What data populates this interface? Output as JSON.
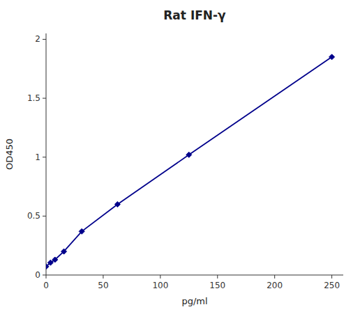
{
  "chart_data": {
    "type": "line",
    "title": "Rat IFN-γ",
    "xlabel": "pg/ml",
    "ylabel": "OD450",
    "x": [
      0,
      3.9,
      7.8,
      15.6,
      31.25,
      62.5,
      125,
      250
    ],
    "values": [
      0.072,
      0.105,
      0.13,
      0.2,
      0.37,
      0.6,
      1.02,
      1.85
    ],
    "color": "#00008B",
    "marker": "diamond",
    "xlim": [
      0,
      260
    ],
    "ylim": [
      0,
      2.05
    ],
    "xticks": [
      0,
      50,
      100,
      150,
      200,
      250
    ],
    "yticks": [
      0,
      0.5,
      1,
      1.5,
      2
    ],
    "grid": false
  }
}
